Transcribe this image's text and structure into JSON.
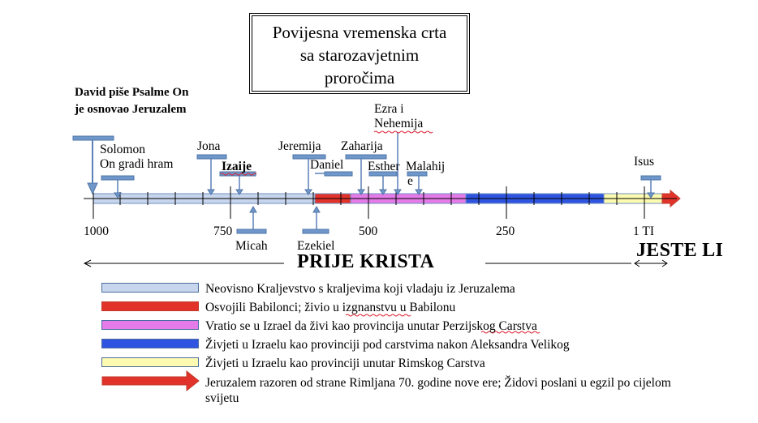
{
  "title": {
    "line1": "Povijesna vremenska crta",
    "line2": "sa starozavjetnim",
    "line3": "proročima"
  },
  "david_note": {
    "line1": "David piše Psalme On",
    "line2": "je osnovao Jeruzalem"
  },
  "figures": {
    "solomon": {
      "line1": "Solomon",
      "line2": "On gradi hram"
    },
    "jona": "Jona",
    "izaije": "Izaije",
    "micah": "Micah",
    "jeremija": "Jeremija",
    "daniel": "Daniel",
    "ezekiel": "Ezekiel",
    "zaharija": "Zaharija",
    "ezra": {
      "line1": "Ezra i",
      "line2": "Nehemija"
    },
    "esther": "Esther",
    "malahij": {
      "line1": "Malahij",
      "line2": "e"
    },
    "isus": "Isus"
  },
  "ticks": [
    "1000",
    "750",
    "500",
    "250",
    "1 TI"
  ],
  "arrow_left_label": "PRIJE KRISTA",
  "arrow_right_label": "JESTE LI",
  "legend": [
    {
      "color": "#c7d6ec",
      "text": "Neovisno Kraljevstvo s kraljevima koji vladaju iz Jeruzalema"
    },
    {
      "color": "#e2332b",
      "text": "Osvojili Babilonci; živio u izgnanstvu u Babilonu"
    },
    {
      "color": "#e57be8",
      "text": "Vratio se u Izrael da živi kao provincija unutar Perzijskog Carstva"
    },
    {
      "color": "#2f55e0",
      "text": "Živjeti u Izraelu kao provinciji pod carstvima nakon Aleksandra Velikog"
    },
    {
      "color": "#fdfbb0",
      "text": "Živjeti u Izraelu kao provinciji unutar Rimskog Carstva"
    },
    {
      "color": "#e2332b",
      "text_line1": "Jeruzalem razoren od strane Rimljana 70. godine nove ere; Židovi poslani u egzil po cijelom",
      "text_line2": "svijetu"
    }
  ]
}
